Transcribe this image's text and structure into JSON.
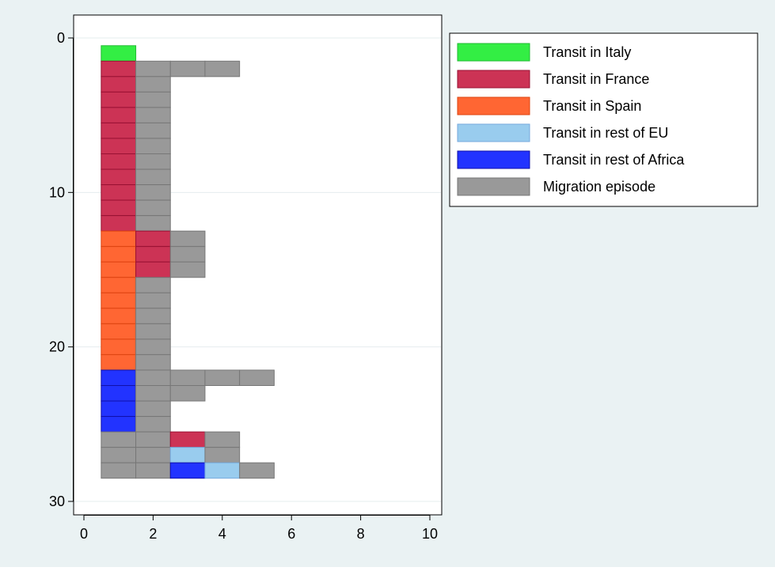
{
  "chart_data": {
    "type": "bar",
    "orientation": "horizontal-stacked",
    "title": "",
    "xlabel": "",
    "ylabel": "",
    "xlim": [
      0,
      10
    ],
    "ylim": [
      0,
      30
    ],
    "y_reversed": true,
    "x_ticks": [
      "0",
      "2",
      "4",
      "6",
      "8",
      "10"
    ],
    "y_ticks": [
      "0",
      "10",
      "20",
      "30"
    ],
    "grid": "horizontal",
    "legend_position": "right-top",
    "colors": {
      "plot_background": "#ffffff",
      "outer_background": "#eaf2f3",
      "grid": "#e4ecee"
    },
    "series": [
      {
        "name": "Transit in Italy",
        "color": "#33ee44",
        "edge": "#22bb33"
      },
      {
        "name": "Transit in France",
        "color": "#cc3355",
        "edge": "#991133"
      },
      {
        "name": "Transit in Spain",
        "color": "#ff6633",
        "edge": "#dd4411"
      },
      {
        "name": "Transit in rest of EU",
        "color": "#99ccee",
        "edge": "#77aadd"
      },
      {
        "name": "Transit in rest of Africa",
        "color": "#2233ff",
        "edge": "#1111aa"
      },
      {
        "name": "Migration episode",
        "color": "#999999",
        "edge": "#777777"
      }
    ],
    "rows": [
      {
        "y": 1,
        "segments": [
          0
        ]
      },
      {
        "y": 2,
        "segments": [
          1,
          5,
          5,
          5
        ]
      },
      {
        "y": 3,
        "segments": [
          1,
          5
        ]
      },
      {
        "y": 4,
        "segments": [
          1,
          5
        ]
      },
      {
        "y": 5,
        "segments": [
          1,
          5
        ]
      },
      {
        "y": 6,
        "segments": [
          1,
          5
        ]
      },
      {
        "y": 7,
        "segments": [
          1,
          5
        ]
      },
      {
        "y": 8,
        "segments": [
          1,
          5
        ]
      },
      {
        "y": 9,
        "segments": [
          1,
          5
        ]
      },
      {
        "y": 10,
        "segments": [
          1,
          5
        ]
      },
      {
        "y": 11,
        "segments": [
          1,
          5
        ]
      },
      {
        "y": 12,
        "segments": [
          1,
          5
        ]
      },
      {
        "y": 13,
        "segments": [
          2,
          1,
          5
        ]
      },
      {
        "y": 14,
        "segments": [
          2,
          1,
          5
        ]
      },
      {
        "y": 15,
        "segments": [
          2,
          1,
          5
        ]
      },
      {
        "y": 16,
        "segments": [
          2,
          5
        ]
      },
      {
        "y": 17,
        "segments": [
          2,
          5
        ]
      },
      {
        "y": 18,
        "segments": [
          2,
          5
        ]
      },
      {
        "y": 19,
        "segments": [
          2,
          5
        ]
      },
      {
        "y": 20,
        "segments": [
          2,
          5
        ]
      },
      {
        "y": 21,
        "segments": [
          2,
          5
        ]
      },
      {
        "y": 22,
        "segments": [
          4,
          5,
          5,
          5,
          5
        ]
      },
      {
        "y": 23,
        "segments": [
          4,
          5,
          5
        ]
      },
      {
        "y": 24,
        "segments": [
          4,
          5
        ]
      },
      {
        "y": 25,
        "segments": [
          4,
          5
        ]
      },
      {
        "y": 26,
        "segments": [
          5,
          5,
          1,
          5
        ]
      },
      {
        "y": 27,
        "segments": [
          5,
          5,
          3,
          5
        ]
      },
      {
        "y": 28,
        "segments": [
          5,
          5,
          4,
          3,
          5
        ]
      }
    ]
  }
}
